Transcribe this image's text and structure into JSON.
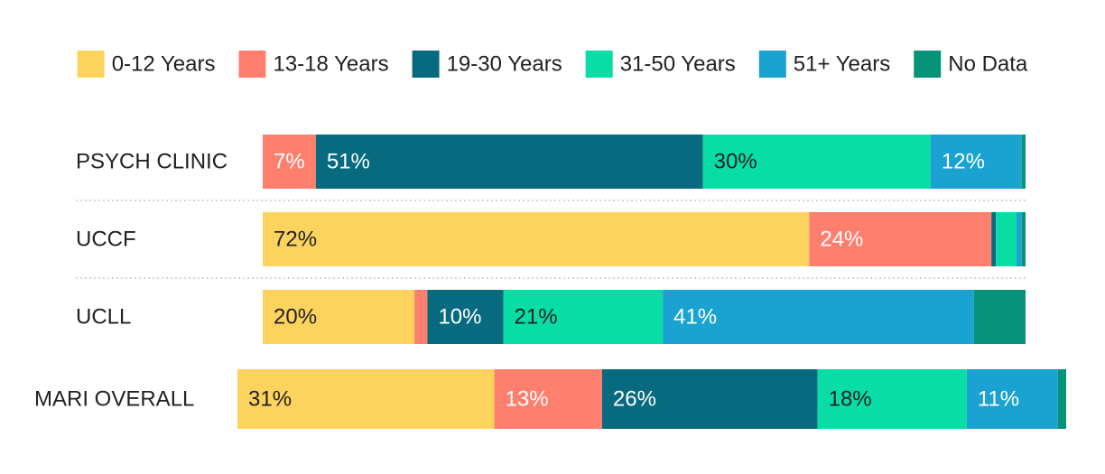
{
  "chart_data": {
    "type": "bar",
    "orientation": "horizontal",
    "stacked": true,
    "normalized_percent": true,
    "legend_position": "top",
    "grid": false,
    "series": [
      {
        "name": "0-12 Years",
        "color": "#FDD35F",
        "label_color": "#222222"
      },
      {
        "name": "13-18 Years",
        "color": "#FF7F6F",
        "label_color": "#ffffff"
      },
      {
        "name": "19-30 Years",
        "color": "#086A7E",
        "label_color": "#ffffff"
      },
      {
        "name": "31-50 Years",
        "color": "#08DDA6",
        "label_color": "#222222"
      },
      {
        "name": "51+ Years",
        "color": "#1AA3D1",
        "label_color": "#ffffff"
      },
      {
        "name": "No Data",
        "color": "#07937A",
        "label_color": "#ffffff"
      }
    ],
    "rows": [
      {
        "name": "PSYCH CLINIC",
        "values": [
          0,
          7,
          51,
          30,
          12,
          0.5
        ],
        "labels": [
          "",
          "7%",
          "51%",
          "30%",
          "12%",
          ""
        ]
      },
      {
        "name": "UCCF",
        "values": [
          72,
          24,
          0.6,
          2.7,
          0.7,
          0.5
        ],
        "labels": [
          "72%",
          "24%",
          "",
          "",
          "",
          ""
        ]
      },
      {
        "name": "UCLL",
        "values": [
          20,
          1.7,
          10,
          21,
          41,
          6.8
        ],
        "labels": [
          "20%",
          "",
          "10%",
          "21%",
          "41%",
          ""
        ]
      },
      {
        "name": "MARI OVERALL",
        "values": [
          31,
          13,
          26,
          18,
          11,
          1
        ],
        "labels": [
          "31%",
          "13%",
          "26%",
          "18%",
          "11%",
          ""
        ]
      }
    ]
  }
}
